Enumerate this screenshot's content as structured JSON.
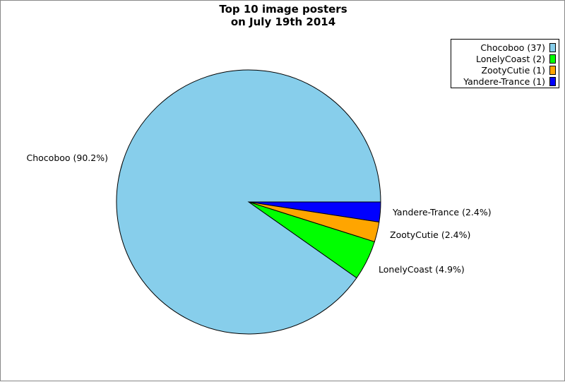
{
  "chart_data": {
    "type": "pie",
    "title_lines": [
      "Top 10 image posters",
      "on July 19th 2014"
    ],
    "slices": [
      {
        "name": "Chocoboo",
        "value": 37,
        "percent": 90.2,
        "color": "#87CEEB",
        "legend_label": "Chocoboo (37)",
        "slice_label": "Chocoboo (90.2%)"
      },
      {
        "name": "LonelyCoast",
        "value": 2,
        "percent": 4.9,
        "color": "#00FF00",
        "legend_label": "LonelyCoast (2)",
        "slice_label": "LonelyCoast (4.9%)"
      },
      {
        "name": "ZootyCutie",
        "value": 1,
        "percent": 2.4,
        "color": "#FFA500",
        "legend_label": "ZootyCutie (1)",
        "slice_label": "ZootyCutie (2.4%)"
      },
      {
        "name": "Yandere-Trance",
        "value": 1,
        "percent": 2.4,
        "color": "#0000FF",
        "legend_label": "Yandere-Trance (1)",
        "slice_label": "Yandere-Trance (2.4%)"
      }
    ],
    "legend_position": "top-right"
  }
}
